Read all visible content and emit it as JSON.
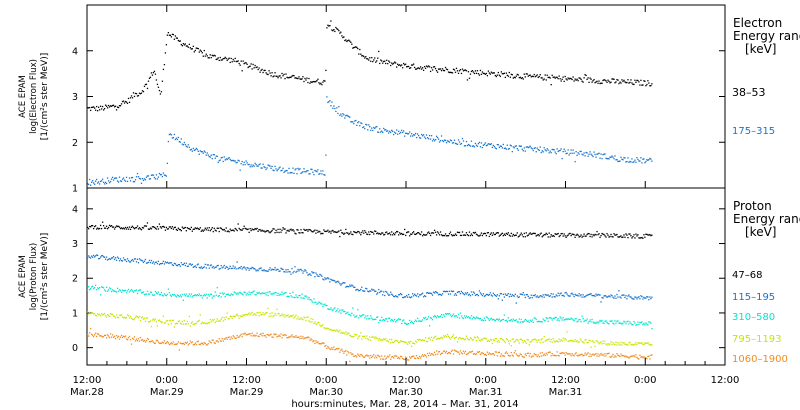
{
  "chart_data": [
    {
      "type": "scatter",
      "panel": "electron",
      "ylabel_lines": [
        "ACE EPAM",
        "log(Electron Flux)",
        "[1/(cm²s ster MeV)]"
      ],
      "ylim": [
        1,
        5
      ],
      "yticks": [
        1,
        2,
        3,
        4
      ],
      "legend_title": [
        "Electron",
        "Energy range",
        "[keV]"
      ],
      "grid": false,
      "x_unit": "hours since 2014-03-28 12:00",
      "series": [
        {
          "name": "38–53",
          "color": "#000000",
          "points": [
            [
              0,
              2.75
            ],
            [
              2,
              2.75
            ],
            [
              4,
              2.8
            ],
            [
              6,
              2.9
            ],
            [
              7,
              3.05
            ],
            [
              8,
              3.1
            ],
            [
              9,
              3.3
            ],
            [
              10,
              3.6
            ],
            [
              11,
              3.0
            ],
            [
              12,
              4.4
            ],
            [
              14,
              4.2
            ],
            [
              16,
              4.05
            ],
            [
              18,
              3.9
            ],
            [
              20,
              3.85
            ],
            [
              22,
              3.8
            ],
            [
              24,
              3.7
            ],
            [
              26,
              3.6
            ],
            [
              28,
              3.5
            ],
            [
              30,
              3.45
            ],
            [
              32,
              3.4
            ],
            [
              34,
              3.35
            ],
            [
              35.8,
              3.32
            ],
            [
              36,
              4.6
            ],
            [
              38,
              4.4
            ],
            [
              40,
              4.1
            ],
            [
              42,
              3.85
            ],
            [
              44,
              3.78
            ],
            [
              46,
              3.72
            ],
            [
              50,
              3.65
            ],
            [
              54,
              3.6
            ],
            [
              58,
              3.55
            ],
            [
              62,
              3.5
            ],
            [
              66,
              3.45
            ],
            [
              70,
              3.42
            ],
            [
              74,
              3.38
            ],
            [
              78,
              3.35
            ],
            [
              82,
              3.32
            ],
            [
              85,
              3.3
            ]
          ]
        },
        {
          "name": "175–315",
          "color": "#1874cd",
          "points": [
            [
              0,
              1.15
            ],
            [
              2,
              1.15
            ],
            [
              4,
              1.2
            ],
            [
              6,
              1.2
            ],
            [
              8,
              1.22
            ],
            [
              10,
              1.25
            ],
            [
              11.9,
              1.3
            ],
            [
              12.2,
              2.2
            ],
            [
              14,
              2.05
            ],
            [
              16,
              1.85
            ],
            [
              18,
              1.75
            ],
            [
              20,
              1.65
            ],
            [
              22,
              1.6
            ],
            [
              24,
              1.55
            ],
            [
              26,
              1.5
            ],
            [
              28,
              1.45
            ],
            [
              30,
              1.4
            ],
            [
              32,
              1.38
            ],
            [
              35.8,
              1.35
            ],
            [
              36,
              2.95
            ],
            [
              38,
              2.65
            ],
            [
              40,
              2.45
            ],
            [
              42,
              2.35
            ],
            [
              44,
              2.28
            ],
            [
              48,
              2.2
            ],
            [
              52,
              2.1
            ],
            [
              56,
              2.0
            ],
            [
              60,
              1.95
            ],
            [
              64,
              1.9
            ],
            [
              68,
              1.85
            ],
            [
              72,
              1.8
            ],
            [
              76,
              1.75
            ],
            [
              80,
              1.65
            ],
            [
              85,
              1.6
            ]
          ]
        }
      ]
    },
    {
      "type": "scatter",
      "panel": "proton",
      "ylabel_lines": [
        "ACE EPAM",
        "log(Proton Flux)",
        "[1/(cm²s ster MeV)]"
      ],
      "ylim": [
        -0.5,
        4.6
      ],
      "yticks": [
        0,
        1,
        2,
        3,
        4
      ],
      "legend_title": [
        "Proton",
        "Energy range",
        "[keV]"
      ],
      "xlim": [
        0,
        96
      ],
      "xticks": [
        0,
        12,
        24,
        36,
        48,
        60,
        72,
        84,
        96
      ],
      "xtick_time": [
        "12:00",
        "0:00",
        "12:00",
        "0:00",
        "12:00",
        "0:00",
        "12:00",
        "0:00",
        "12:00"
      ],
      "xtick_date": [
        "Mar.28",
        "Mar.29",
        "Mar.29",
        "Mar.30",
        "Mar.30",
        "Mar.31",
        "Mar.31",
        "",
        ""
      ],
      "xlabel": "hours:minutes, Mar. 28, 2014 – Mar. 31, 2014",
      "grid": false,
      "series": [
        {
          "name": "47–68",
          "color": "#000000",
          "points": [
            [
              0,
              3.5
            ],
            [
              6,
              3.48
            ],
            [
              12,
              3.45
            ],
            [
              18,
              3.42
            ],
            [
              24,
              3.4
            ],
            [
              30,
              3.38
            ],
            [
              36,
              3.35
            ],
            [
              42,
              3.33
            ],
            [
              48,
              3.3
            ],
            [
              54,
              3.3
            ],
            [
              60,
              3.28
            ],
            [
              66,
              3.27
            ],
            [
              72,
              3.25
            ],
            [
              78,
              3.25
            ],
            [
              85,
              3.22
            ]
          ]
        },
        {
          "name": "115–195",
          "color": "#1874cd",
          "points": [
            [
              0,
              2.65
            ],
            [
              6,
              2.55
            ],
            [
              12,
              2.45
            ],
            [
              18,
              2.35
            ],
            [
              24,
              2.3
            ],
            [
              30,
              2.25
            ],
            [
              33,
              2.2
            ],
            [
              36,
              2.0
            ],
            [
              40,
              1.75
            ],
            [
              44,
              1.6
            ],
            [
              48,
              1.5
            ],
            [
              54,
              1.6
            ],
            [
              60,
              1.55
            ],
            [
              66,
              1.5
            ],
            [
              72,
              1.55
            ],
            [
              78,
              1.5
            ],
            [
              85,
              1.45
            ]
          ]
        },
        {
          "name": "310–580",
          "color": "#00e5d0",
          "points": [
            [
              0,
              1.75
            ],
            [
              6,
              1.65
            ],
            [
              12,
              1.55
            ],
            [
              18,
              1.5
            ],
            [
              24,
              1.6
            ],
            [
              30,
              1.55
            ],
            [
              33,
              1.45
            ],
            [
              36,
              1.2
            ],
            [
              40,
              0.95
            ],
            [
              44,
              0.85
            ],
            [
              48,
              0.75
            ],
            [
              54,
              0.95
            ],
            [
              60,
              0.85
            ],
            [
              66,
              0.8
            ],
            [
              72,
              0.85
            ],
            [
              78,
              0.75
            ],
            [
              85,
              0.7
            ]
          ]
        },
        {
          "name": "795–1193",
          "color": "#c8e600",
          "points": [
            [
              0,
              1.0
            ],
            [
              6,
              0.9
            ],
            [
              12,
              0.75
            ],
            [
              18,
              0.75
            ],
            [
              24,
              1.0
            ],
            [
              30,
              0.95
            ],
            [
              33,
              0.85
            ],
            [
              36,
              0.6
            ],
            [
              40,
              0.35
            ],
            [
              44,
              0.25
            ],
            [
              48,
              0.15
            ],
            [
              54,
              0.35
            ],
            [
              60,
              0.25
            ],
            [
              66,
              0.2
            ],
            [
              72,
              0.25
            ],
            [
              78,
              0.15
            ],
            [
              85,
              0.1
            ]
          ]
        },
        {
          "name": "1060–1900",
          "color": "#f08c1e",
          "points": [
            [
              0,
              0.4
            ],
            [
              6,
              0.3
            ],
            [
              12,
              0.15
            ],
            [
              18,
              0.15
            ],
            [
              24,
              0.4
            ],
            [
              30,
              0.35
            ],
            [
              33,
              0.3
            ],
            [
              36,
              0.05
            ],
            [
              40,
              -0.2
            ],
            [
              44,
              -0.25
            ],
            [
              48,
              -0.3
            ],
            [
              54,
              -0.1
            ],
            [
              60,
              -0.15
            ],
            [
              66,
              -0.2
            ],
            [
              72,
              -0.15
            ],
            [
              78,
              -0.2
            ],
            [
              85,
              -0.25
            ]
          ]
        }
      ]
    }
  ]
}
